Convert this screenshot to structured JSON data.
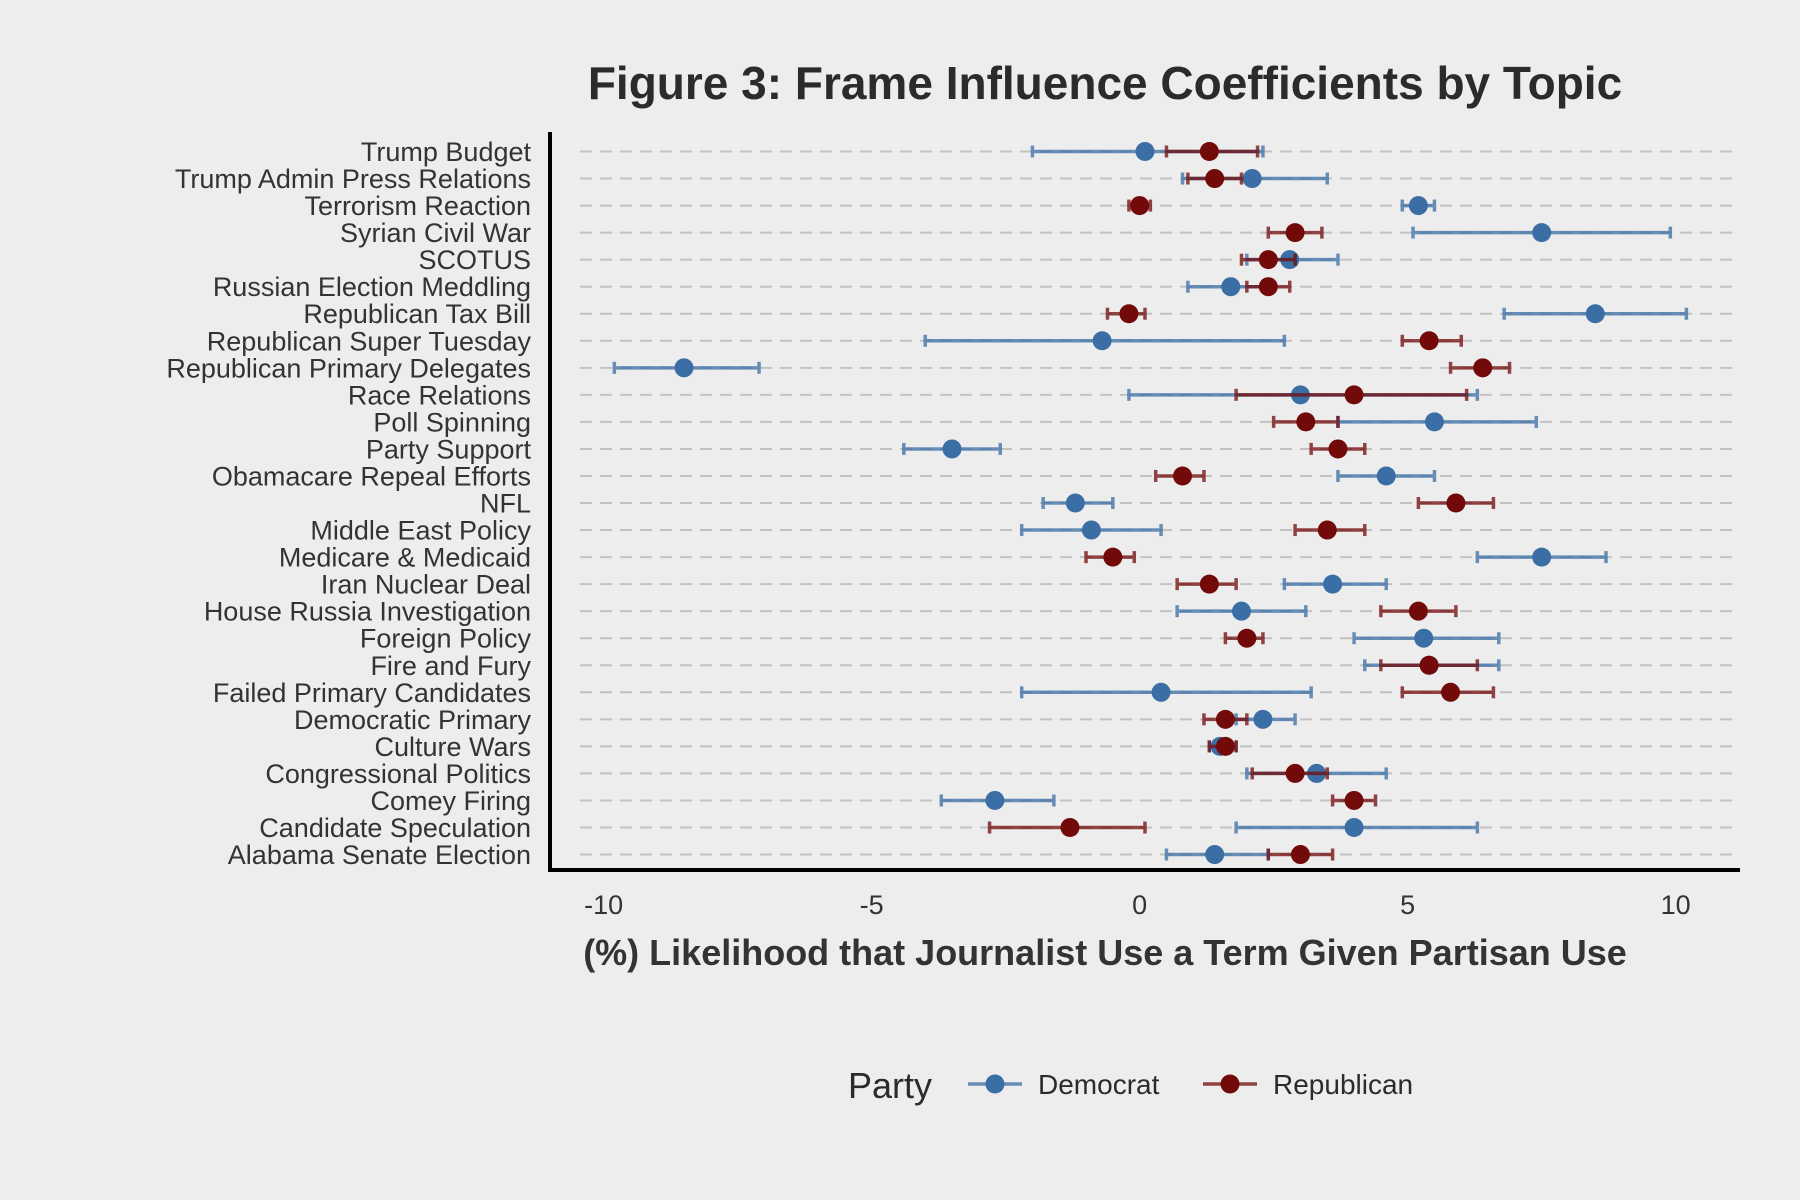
{
  "chart_data": {
    "type": "scatter",
    "title": "Figure 3: Frame Influence Coefficients by Topic",
    "xlabel": "(%) Likelihood that Journalist Use a Term Given Partisan Use",
    "ylabel": "",
    "xlim": [
      -11,
      11.2
    ],
    "xticks": [
      "-10",
      "-5",
      "0",
      "5",
      "10"
    ],
    "grid": "horizontal-dashed",
    "legend": {
      "title": "Party",
      "placement": "bottom"
    },
    "categories": [
      "Trump Budget",
      "Trump Admin Press Relations",
      "Terrorism Reaction",
      "Syrian Civil War",
      "SCOTUS",
      "Russian Election Meddling",
      "Republican Tax Bill",
      "Republican Super Tuesday",
      "Republican Primary Delegates",
      "Race Relations",
      "Poll Spinning",
      "Party Support",
      "Obamacare Repeal Efforts",
      "NFL",
      "Middle East Policy",
      "Medicare & Medicaid",
      "Iran Nuclear Deal",
      "House Russia Investigation",
      "Foreign Policy",
      "Fire and Fury",
      "Failed Primary Candidates",
      "Democratic Primary",
      "Culture Wars",
      "Congressional Politics",
      "Comey Firing",
      "Candidate Speculation",
      "Alabama Senate Election"
    ],
    "series": [
      {
        "name": "Democrat",
        "color": "#3b6ea5",
        "values": [
          0.1,
          2.1,
          5.2,
          7.5,
          2.8,
          1.7,
          8.5,
          -0.7,
          -8.5,
          3.0,
          5.5,
          -3.5,
          4.6,
          -1.2,
          -0.9,
          7.5,
          3.6,
          1.9,
          5.3,
          5.4,
          0.4,
          2.3,
          1.5,
          3.3,
          -2.7,
          4.0,
          1.4
        ],
        "lower": [
          -2.0,
          0.8,
          4.9,
          5.1,
          2.0,
          0.9,
          6.8,
          -4.0,
          -9.8,
          -0.2,
          3.7,
          -4.4,
          3.7,
          -1.8,
          -2.2,
          6.3,
          2.7,
          0.7,
          4.0,
          4.2,
          -2.2,
          1.8,
          1.3,
          2.0,
          -3.7,
          1.8,
          0.5
        ],
        "upper": [
          2.3,
          3.5,
          5.5,
          9.9,
          3.7,
          2.5,
          10.2,
          2.7,
          -7.1,
          6.3,
          7.4,
          -2.6,
          5.5,
          -0.5,
          0.4,
          8.7,
          4.6,
          3.1,
          6.7,
          6.7,
          3.2,
          2.9,
          1.8,
          4.6,
          -1.6,
          6.3,
          2.4
        ]
      },
      {
        "name": "Republican",
        "color": "#720a0a",
        "values": [
          1.3,
          1.4,
          0.0,
          2.9,
          2.4,
          2.4,
          -0.2,
          5.4,
          6.4,
          4.0,
          3.1,
          3.7,
          0.8,
          5.9,
          3.5,
          -0.5,
          1.3,
          5.2,
          2.0,
          5.4,
          5.8,
          1.6,
          1.6,
          2.9,
          4.0,
          -1.3,
          3.0
        ],
        "lower": [
          0.5,
          0.9,
          -0.2,
          2.4,
          1.9,
          2.0,
          -0.6,
          4.9,
          5.8,
          1.8,
          2.5,
          3.2,
          0.3,
          5.2,
          2.9,
          -1.0,
          0.7,
          4.5,
          1.6,
          4.5,
          4.9,
          1.2,
          1.3,
          2.1,
          3.6,
          -2.8,
          2.4
        ],
        "upper": [
          2.2,
          1.9,
          0.2,
          3.4,
          2.9,
          2.8,
          0.1,
          6.0,
          6.9,
          6.1,
          3.7,
          4.2,
          1.2,
          6.6,
          4.2,
          -0.1,
          1.8,
          5.9,
          2.3,
          6.3,
          6.6,
          2.0,
          1.8,
          3.5,
          4.4,
          0.1,
          3.6
        ]
      }
    ]
  }
}
